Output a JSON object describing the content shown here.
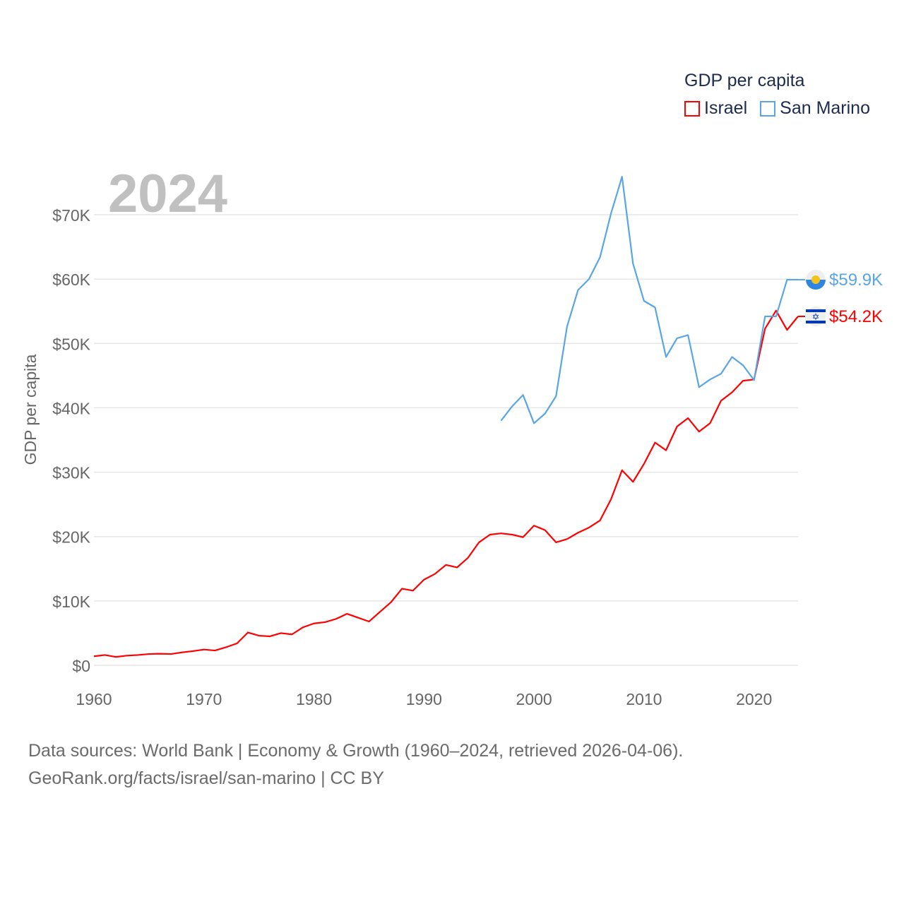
{
  "chart_data": {
    "type": "line",
    "title": "GDP per capita",
    "ylabel": "GDP per capita",
    "xlabel": "",
    "year_label": "2024",
    "xlim": [
      1960,
      2024
    ],
    "ylim": [
      0,
      70000
    ],
    "x_ticks": [
      1960,
      1970,
      1980,
      1990,
      2000,
      2010,
      2020
    ],
    "y_ticks": [
      0,
      10000,
      20000,
      30000,
      40000,
      50000,
      60000,
      70000
    ],
    "y_tick_labels": [
      "$0",
      "$10K",
      "$20K",
      "$30K",
      "$40K",
      "$50K",
      "$60K",
      "$70K"
    ],
    "grid": true,
    "legend_position": "top-right",
    "series": [
      {
        "name": "Israel",
        "color": "#ff0000",
        "end_label": "$54.2K",
        "start_year": 1960,
        "values_thousands": [
          1.4,
          1.6,
          1.3,
          1.5,
          1.6,
          1.75,
          1.8,
          1.75,
          2.0,
          2.2,
          2.45,
          2.3,
          2.8,
          3.4,
          5.1,
          4.6,
          4.5,
          5.0,
          4.8,
          5.9,
          6.5,
          6.7,
          7.2,
          8.0,
          7.4,
          6.8,
          8.3,
          9.8,
          11.9,
          11.6,
          13.3,
          14.2,
          15.6,
          15.2,
          16.7,
          19.1,
          20.3,
          20.5,
          20.3,
          19.9,
          21.7,
          21.0,
          19.1,
          19.6,
          20.6,
          21.4,
          22.5,
          25.8,
          30.3,
          28.5,
          31.3,
          34.6,
          33.4,
          37.1,
          38.4,
          36.3,
          37.6,
          41.1,
          42.4,
          44.2,
          44.4,
          52.3,
          55.1,
          52.1,
          54.2
        ]
      },
      {
        "name": "San Marino",
        "color": "#5aa5e6",
        "end_label": "$59.9K",
        "start_year": 1997,
        "values_thousands": [
          38.0,
          40.2,
          42.0,
          37.6,
          39.1,
          41.8,
          52.6,
          58.3,
          60.0,
          63.4,
          70.2,
          75.9,
          62.4,
          56.6,
          55.6,
          47.9,
          50.8,
          51.3,
          43.2,
          44.4,
          45.3,
          47.9,
          46.6,
          44.3,
          54.2,
          54.2,
          59.9,
          59.9
        ]
      }
    ]
  },
  "footer": {
    "line1": "Data sources: World Bank | Economy & Growth (1960–2024, retrieved 2026-04-06).",
    "line2": "GeoRank.org/facts/israel/san-marino | CC BY"
  }
}
